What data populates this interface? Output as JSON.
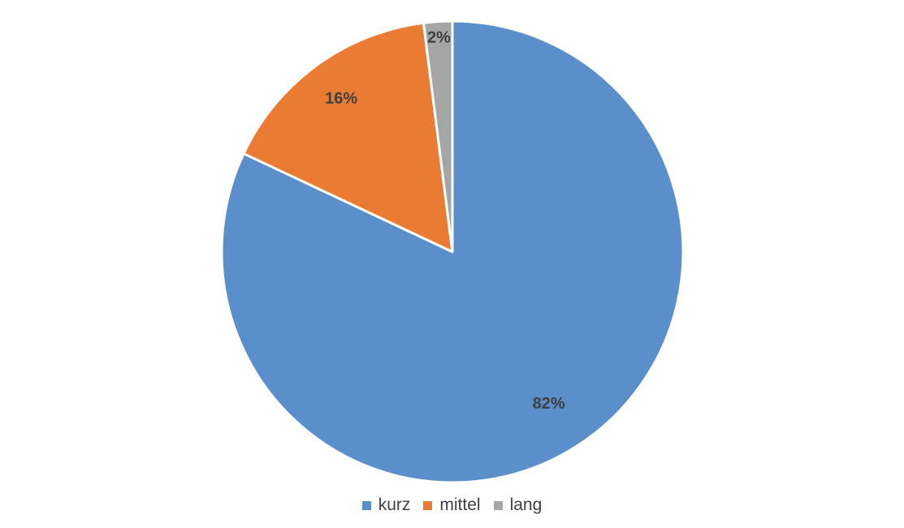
{
  "chart_data": {
    "type": "pie",
    "categories": [
      "kurz",
      "mittel",
      "lang"
    ],
    "values": [
      82,
      16,
      2
    ],
    "data_labels": [
      "82%",
      "16%",
      "2%"
    ],
    "colors": [
      "#5B8FCB",
      "#E97B33",
      "#A5A5A5"
    ],
    "title": "",
    "legend_position": "bottom",
    "start_angle": "top, clockwise"
  }
}
